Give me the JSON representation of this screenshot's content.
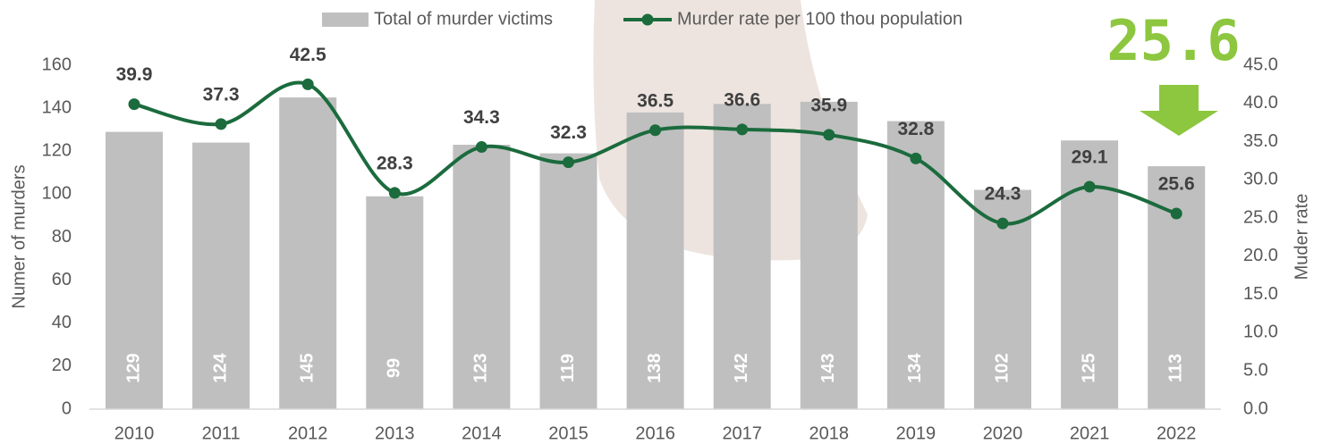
{
  "chart_data": {
    "type": "bar_line",
    "categories": [
      "2010",
      "2011",
      "2012",
      "2013",
      "2014",
      "2015",
      "2016",
      "2017",
      "2018",
      "2019",
      "2020",
      "2021",
      "2022"
    ],
    "series": [
      {
        "name": "Total of murder victims",
        "color": "#bfbfbf",
        "type": "bar",
        "values": [
          129,
          124,
          145,
          99,
          123,
          119,
          138,
          142,
          143,
          134,
          102,
          125,
          113
        ]
      },
      {
        "name": "Murder rate per 100 thou population",
        "color": "#1b6b3d",
        "type": "line",
        "axis": "y2",
        "values": [
          39.9,
          37.3,
          42.5,
          28.3,
          34.3,
          32.3,
          36.5,
          36.6,
          35.9,
          32.8,
          24.3,
          29.1,
          25.6
        ]
      }
    ],
    "ylabel": "Numer of murders",
    "y2label": "Muder rate",
    "ylim": [
      0,
      160
    ],
    "yticks": [
      0,
      20,
      40,
      60,
      80,
      100,
      120,
      140,
      160
    ],
    "y2lim": [
      0,
      45
    ],
    "y2ticks": [
      {
        "value": 0,
        "label": "0.0"
      },
      {
        "value": 5,
        "label": "5.0"
      },
      {
        "value": 10,
        "label": "10.0"
      },
      {
        "value": 15,
        "label": "15.0"
      },
      {
        "value": 20,
        "label": "20.0"
      },
      {
        "value": 25,
        "label": "25.0"
      },
      {
        "value": 30,
        "label": "30.0"
      },
      {
        "value": 35,
        "label": "35.0"
      },
      {
        "value": 40,
        "label": "40.0"
      },
      {
        "value": 45,
        "label": "45.0"
      }
    ],
    "annotation": "25.6",
    "annotation_color": "#8dc63f"
  }
}
